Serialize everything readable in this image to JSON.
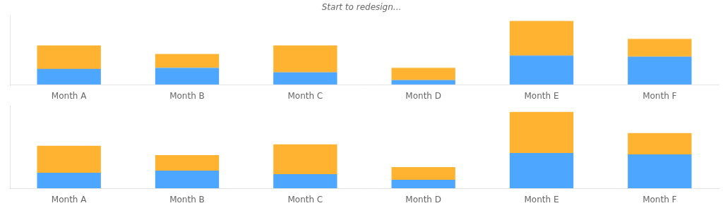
{
  "chart_data": [
    {
      "type": "bar",
      "title": "Start to redesign...",
      "stacked": true,
      "grid": false,
      "tick_labels": "x",
      "categories": [
        "Month A",
        "Month B",
        "Month C",
        "Month D",
        "Month E",
        "Month F"
      ],
      "series": [
        {
          "color": "#4da6ff",
          "values": [
            28,
            30,
            22,
            8,
            52,
            50
          ]
        },
        {
          "color": "#ffb330",
          "values": [
            42,
            25,
            48,
            22,
            62,
            32
          ]
        }
      ],
      "ylim": [
        0,
        123.12
      ]
    },
    {
      "type": "bar",
      "stacked": true,
      "grid": false,
      "tick_labels": "x",
      "categories": [
        "Month A",
        "Month B",
        "Month C",
        "Month D",
        "Month E",
        "Month F"
      ],
      "series": [
        {
          "color": "#4da6ff",
          "values": [
            22,
            25,
            20,
            12,
            50,
            48
          ]
        },
        {
          "color": "#ffb330",
          "values": [
            38,
            22,
            42,
            18,
            58,
            30
          ]
        }
      ],
      "ylim": [
        0,
        116.64
      ]
    }
  ]
}
